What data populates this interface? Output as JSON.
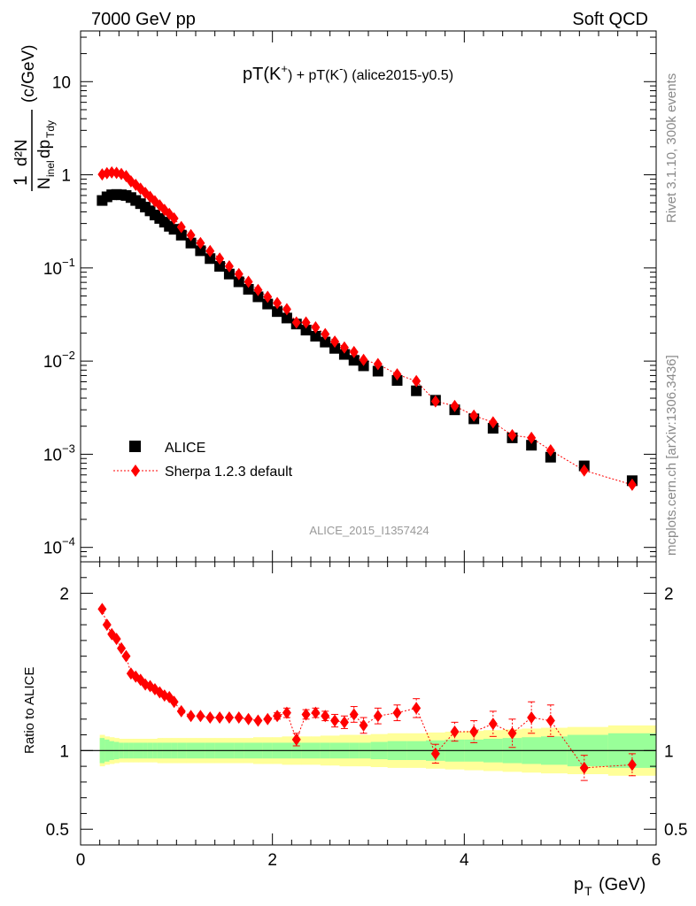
{
  "header": {
    "energy_label": "7000 GeV pp",
    "category_label": "Soft QCD"
  },
  "side_labels": {
    "rivet": "Rivet 3.1.10,  300k events",
    "source": "mcplots.cern.ch [arXiv:1306.3436]"
  },
  "chart_data": {
    "type": "scatter",
    "title": "pT(K+) + pT(K-) (alice2015-y0.5)",
    "title_parts": {
      "a": "pT(K",
      "sup1": "+",
      "b": ") + pT(K",
      "sup2": "-",
      "c": ") (alice2015-y0.5)"
    },
    "analysis_label": "ALICE_2015_I1357424",
    "xlabel": "p",
    "xlabel_sub": "T",
    "xlabel_unit": "(GeV)",
    "ylabel_top": "1",
    "ylabel_num": "d²N",
    "ylabel_den_a": "N",
    "ylabel_den_sub1": "inel",
    "ylabel_den_b": "dp",
    "ylabel_den_sub2": "Tdy",
    "ylabel_unit": "(c/GeV)",
    "ratio_ylabel": "Ratio to ALICE",
    "xlim": [
      0,
      6
    ],
    "ylim": [
      7e-05,
      35
    ],
    "ratio_ylim": [
      0.4,
      2.2
    ],
    "y_scale": "log",
    "x_ticks": [
      "0",
      "2",
      "4",
      "6"
    ],
    "y_ticks": [
      {
        "value": 10,
        "label": "10"
      },
      {
        "value": 1,
        "label": "1"
      },
      {
        "value": 0.1,
        "label": "10",
        "exp": "−1"
      },
      {
        "value": 0.01,
        "label": "10",
        "exp": "−2"
      },
      {
        "value": 0.001,
        "label": "10",
        "exp": "−3"
      },
      {
        "value": 0.0001,
        "label": "10",
        "exp": "−4"
      }
    ],
    "ratio_ticks": [
      {
        "value": 2,
        "label": "2"
      },
      {
        "value": 1,
        "label": "1"
      },
      {
        "value": 0.5,
        "label": "0.5"
      }
    ],
    "legend": {
      "position": "bottom-left",
      "entries": [
        "ALICE",
        "Sherpa 1.2.3 default"
      ]
    },
    "colors": {
      "data": "#000000",
      "mc": "#ff0000",
      "band_inner": "#99ff99",
      "band_outer": "#ffff99"
    },
    "x": [
      0.225,
      0.275,
      0.325,
      0.375,
      0.425,
      0.475,
      0.525,
      0.575,
      0.625,
      0.675,
      0.725,
      0.775,
      0.825,
      0.875,
      0.925,
      0.975,
      1.05,
      1.15,
      1.25,
      1.35,
      1.45,
      1.55,
      1.65,
      1.75,
      1.85,
      1.95,
      2.05,
      2.15,
      2.25,
      2.35,
      2.45,
      2.55,
      2.65,
      2.75,
      2.85,
      2.95,
      3.1,
      3.3,
      3.5,
      3.7,
      3.9,
      4.1,
      4.3,
      4.5,
      4.7,
      4.9,
      5.25,
      5.75
    ],
    "series": [
      {
        "name": "ALICE",
        "values": [
          0.53,
          0.58,
          0.61,
          0.615,
          0.61,
          0.6,
          0.57,
          0.53,
          0.49,
          0.45,
          0.41,
          0.37,
          0.34,
          0.31,
          0.28,
          0.26,
          0.225,
          0.185,
          0.153,
          0.126,
          0.104,
          0.086,
          0.071,
          0.059,
          0.049,
          0.041,
          0.034,
          0.029,
          0.025,
          0.0215,
          0.0185,
          0.016,
          0.0137,
          0.0118,
          0.0102,
          0.0089,
          0.0078,
          0.0062,
          0.0048,
          0.0038,
          0.003,
          0.0024,
          0.0019,
          0.0015,
          0.00125,
          0.00093,
          0.00075,
          0.00052
        ],
        "band_inner": [
          0.08,
          0.07,
          0.06,
          0.055,
          0.05,
          0.05,
          0.05,
          0.05,
          0.05,
          0.05,
          0.05,
          0.05,
          0.05,
          0.05,
          0.05,
          0.05,
          0.05,
          0.05,
          0.05,
          0.05,
          0.05,
          0.05,
          0.05,
          0.05,
          0.05,
          0.05,
          0.05,
          0.05,
          0.05,
          0.05,
          0.05,
          0.05,
          0.05,
          0.05,
          0.05,
          0.05,
          0.055,
          0.06,
          0.06,
          0.065,
          0.07,
          0.07,
          0.075,
          0.08,
          0.085,
          0.09,
          0.1,
          0.11
        ],
        "band_outer": [
          0.1,
          0.09,
          0.085,
          0.08,
          0.075,
          0.075,
          0.075,
          0.075,
          0.075,
          0.075,
          0.075,
          0.075,
          0.08,
          0.08,
          0.08,
          0.08,
          0.08,
          0.08,
          0.08,
          0.08,
          0.08,
          0.08,
          0.08,
          0.08,
          0.085,
          0.085,
          0.085,
          0.09,
          0.09,
          0.09,
          0.09,
          0.095,
          0.095,
          0.1,
          0.1,
          0.1,
          0.105,
          0.11,
          0.11,
          0.115,
          0.12,
          0.125,
          0.13,
          0.135,
          0.14,
          0.145,
          0.15,
          0.16
        ]
      },
      {
        "name": "Sherpa 1.2.3 default",
        "values": [
          1.01,
          1.04,
          1.06,
          1.05,
          1.02,
          0.97,
          0.85,
          0.78,
          0.71,
          0.64,
          0.58,
          0.52,
          0.47,
          0.42,
          0.38,
          0.34,
          0.275,
          0.225,
          0.185,
          0.152,
          0.126,
          0.104,
          0.086,
          0.071,
          0.058,
          0.049,
          0.042,
          0.036,
          0.026,
          0.026,
          0.023,
          0.0195,
          0.0162,
          0.014,
          0.0125,
          0.0103,
          0.0093,
          0.0072,
          0.0061,
          0.0037,
          0.0033,
          0.0026,
          0.0022,
          0.0016,
          0.0015,
          0.0011,
          0.00067,
          0.00047
        ],
        "ratio": [
          1.9,
          1.8,
          1.74,
          1.71,
          1.65,
          1.6,
          1.49,
          1.47,
          1.45,
          1.42,
          1.41,
          1.39,
          1.37,
          1.35,
          1.34,
          1.31,
          1.25,
          1.22,
          1.22,
          1.21,
          1.21,
          1.21,
          1.21,
          1.2,
          1.19,
          1.2,
          1.22,
          1.24,
          1.07,
          1.23,
          1.24,
          1.22,
          1.19,
          1.18,
          1.23,
          1.16,
          1.22,
          1.24,
          1.27,
          0.98,
          1.12,
          1.12,
          1.17,
          1.11,
          1.21,
          1.19,
          0.89,
          0.91
        ],
        "ratio_err": [
          0,
          0,
          0,
          0,
          0,
          0,
          0,
          0,
          0,
          0,
          0,
          0,
          0,
          0,
          0,
          0,
          0,
          0,
          0,
          0,
          0,
          0,
          0,
          0,
          0,
          0,
          0.02,
          0.03,
          0.04,
          0.03,
          0.03,
          0.03,
          0.04,
          0.04,
          0.05,
          0.05,
          0.05,
          0.05,
          0.06,
          0.06,
          0.06,
          0.07,
          0.08,
          0.09,
          0.1,
          0.1,
          0.08,
          0.07
        ]
      }
    ]
  }
}
